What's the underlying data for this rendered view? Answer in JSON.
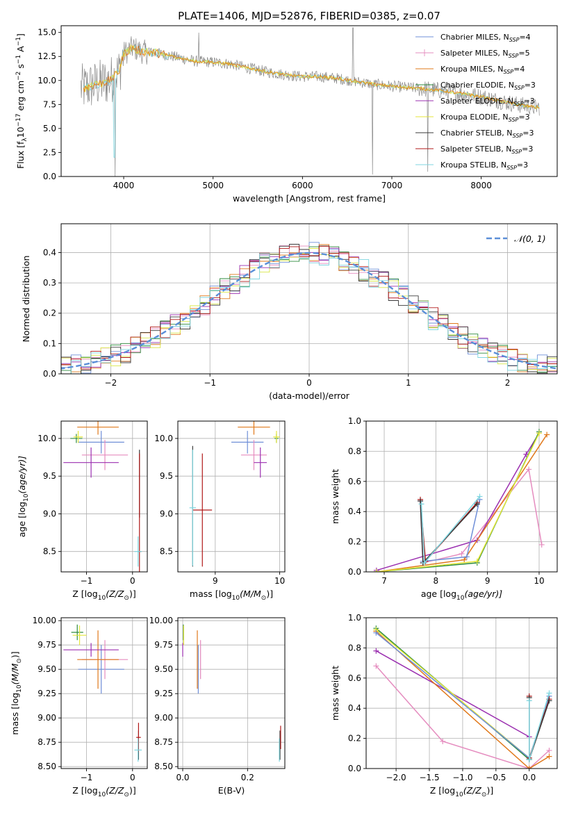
{
  "chart_data": [
    {
      "id": "spectrum",
      "type": "line",
      "title": "PLATE=1406, MJD=52876, FIBERID=0385, z=0.07",
      "xlabel": "wavelength [Angstrom, rest frame]",
      "ylabel_prefix": "Flux [f",
      "ylabel_sub": "λ",
      "ylabel_mid": "10",
      "ylabel_exp1": "−17",
      "ylabel_mid2": " erg cm",
      "ylabel_exp2": "−2",
      "ylabel_mid3": " s",
      "ylabel_exp3": "−1",
      "ylabel_mid4": " A",
      "ylabel_exp4": "−1",
      "ylabel_end": "]",
      "xlim": [
        3300,
        8850
      ],
      "ylim": [
        0,
        15.7
      ],
      "xticks": [
        4000,
        5000,
        6000,
        7000,
        8000
      ],
      "yticks": [
        "0.0",
        "2.5",
        "5.0",
        "7.5",
        "10.0",
        "12.5",
        "15.0"
      ],
      "ytick_values": [
        0,
        2.5,
        5,
        7.5,
        10,
        12.5,
        15
      ],
      "grid": false,
      "legend_position": "top-right",
      "legend": [
        {
          "name": "Chabrier MILES, N",
          "sub": "SSP",
          "tail": "=4",
          "color": "#6f8fd8",
          "marker": "line"
        },
        {
          "name": "Salpeter MILES, N",
          "sub": "SSP",
          "tail": "=5",
          "color": "#e58cbf",
          "marker": "plus"
        },
        {
          "name": "Kroupa MILES, N",
          "sub": "SSP",
          "tail": "=4",
          "color": "#e0781a",
          "marker": "line"
        },
        {
          "name": "Chabrier ELODIE, N",
          "sub": "SSP",
          "tail": "=3",
          "color": "#2e8b3e",
          "marker": "line"
        },
        {
          "name": "Salpeter ELODIE, N",
          "sub": "SSP",
          "tail": "=3",
          "color": "#9b2fb0",
          "marker": "line"
        },
        {
          "name": "Kroupa ELODIE, N",
          "sub": "SSP",
          "tail": "=3",
          "color": "#e4e63a",
          "marker": "line"
        },
        {
          "name": "Chabrier STELIB, N",
          "sub": "SSP",
          "tail": "=3",
          "color": "#3a3a3a",
          "marker": "line"
        },
        {
          "name": "Salpeter STELIB, N",
          "sub": "SSP",
          "tail": "=3",
          "color": "#b01818",
          "marker": "line"
        },
        {
          "name": "Kroupa STELIB, N",
          "sub": "SSP",
          "tail": "=3",
          "color": "#7fd6e0",
          "marker": "line"
        }
      ],
      "data_color": "#888888",
      "model_knots_x": [
        3550,
        3700,
        3850,
        3950,
        4000,
        4100,
        4200,
        4400,
        4600,
        4800,
        5000,
        5200,
        5400,
        5600,
        5800,
        6000,
        6200,
        6400,
        6600,
        6800,
        7000,
        7200,
        7400,
        7600,
        7800,
        8000,
        8200,
        8400,
        8600
      ],
      "model_knots_y": [
        9.2,
        9.6,
        10.0,
        11.0,
        12.8,
        13.4,
        13.0,
        12.8,
        12.4,
        12.0,
        11.9,
        11.7,
        11.3,
        10.9,
        10.6,
        10.4,
        10.4,
        10.2,
        9.9,
        9.6,
        9.4,
        9.25,
        9.1,
        8.9,
        8.6,
        8.3,
        7.9,
        7.5,
        7.2
      ],
      "model_colors": [
        "#7fd6e0",
        "#e4e63a",
        "#e0781a"
      ]
    },
    {
      "id": "residuals",
      "type": "line",
      "xlabel": "(data-model)/error",
      "ylabel": "Normed distribution",
      "xlim": [
        -2.5,
        2.5
      ],
      "ylim": [
        0,
        0.495
      ],
      "xticks": [
        -2,
        -1,
        0,
        1,
        2
      ],
      "xtick_labels": [
        "−2",
        "−1",
        "0",
        "1",
        "2"
      ],
      "yticks": [
        "0.0",
        "0.1",
        "0.2",
        "0.3",
        "0.4"
      ],
      "ytick_values": [
        0,
        0.1,
        0.2,
        0.3,
        0.4
      ],
      "grid": true,
      "legend_position": "top-right",
      "legend_label": "𝒩(0, 1)",
      "gauss_color": "#5b8fd8",
      "hist_colors": [
        "#6f8fd8",
        "#e58cbf",
        "#e0781a",
        "#2e8b3e",
        "#9b2fb0",
        "#d9e84a",
        "#3a3a3a",
        "#b01818",
        "#7fd6e0"
      ]
    },
    {
      "id": "age_vs_Z",
      "type": "scatter",
      "xlabel": "Z [log",
      "xlabel_sub": "10",
      "xlabel_tail": "(Z/Z",
      "xlabel_sun": "⊙",
      "xlabel_end": ")]",
      "ylabel": "age  [log",
      "ylabel_sub": "10",
      "ylabel_tail": "(age/yr)]",
      "xlim": [
        -1.55,
        0.32
      ],
      "ylim": [
        8.23,
        10.23
      ],
      "xticks": [
        -1,
        0
      ],
      "xtick_labels": [
        "−1",
        "0"
      ],
      "yticks": [
        "8.5",
        "9.0",
        "9.5",
        "10.0"
      ],
      "ytick_values": [
        8.5,
        9.0,
        9.5,
        10.0
      ],
      "grid": true,
      "points": [
        {
          "x": -0.68,
          "xerr": 0.5,
          "y": 9.95,
          "yerr": 0.15,
          "color": "#6f8fd8"
        },
        {
          "x": -0.6,
          "xerr": 0.5,
          "y": 9.78,
          "yerr": 0.2,
          "color": "#e58cbf"
        },
        {
          "x": -0.75,
          "xerr": 0.45,
          "y": 10.15,
          "yerr": 0.1,
          "color": "#e0781a"
        },
        {
          "x": -1.22,
          "xerr": 0.13,
          "y": 10.0,
          "yerr": 0.06,
          "color": "#2e8b3e"
        },
        {
          "x": -0.9,
          "xerr": 0.6,
          "y": 9.68,
          "yerr": 0.2,
          "color": "#9b2fb0"
        },
        {
          "x": -1.18,
          "xerr": 0.1,
          "y": 10.02,
          "yerr": 0.08,
          "color": "#e4e63a"
        },
        {
          "x": 0.15,
          "xerr": 0.0,
          "y": 9.4,
          "yerr": 0.45,
          "color": "#3a3a3a"
        },
        {
          "x": 0.15,
          "xerr": 0.04,
          "y": 8.5,
          "yerr": 1.3,
          "color": "#b01818"
        },
        {
          "x": 0.12,
          "xerr": 0.08,
          "y": 8.5,
          "yerr": 0.2,
          "color": "#7fd6e0"
        }
      ]
    },
    {
      "id": "age_vs_mass",
      "type": "scatter",
      "xlabel": "mass [log",
      "xlabel_sub": "10",
      "xlabel_tail": "(M/M",
      "xlabel_sun": "⊙",
      "xlabel_end": ")]",
      "xlim": [
        8.42,
        10.08
      ],
      "ylim": [
        8.23,
        10.23
      ],
      "xticks": [
        9,
        10
      ],
      "xtick_labels": [
        "9",
        "10"
      ],
      "yticks": [
        "8.5",
        "9.0",
        "9.5",
        "10.0"
      ],
      "ytick_values": [
        8.5,
        9.0,
        9.5,
        10.0
      ],
      "grid": true,
      "points": [
        {
          "x": 9.5,
          "xerr": 0.25,
          "y": 9.95,
          "yerr": 0.15,
          "color": "#6f8fd8"
        },
        {
          "x": 9.6,
          "xerr": 0.2,
          "y": 9.78,
          "yerr": 0.2,
          "color": "#e58cbf"
        },
        {
          "x": 9.6,
          "xerr": 0.25,
          "y": 10.15,
          "yerr": 0.1,
          "color": "#e0781a"
        },
        {
          "x": 9.95,
          "xerr": 0.03,
          "y": 10.0,
          "yerr": 0.06,
          "color": "#2e8b3e"
        },
        {
          "x": 9.7,
          "xerr": 0.1,
          "y": 9.68,
          "yerr": 0.2,
          "color": "#9b2fb0"
        },
        {
          "x": 9.95,
          "xerr": 0.05,
          "y": 10.02,
          "yerr": 0.08,
          "color": "#e4e63a"
        },
        {
          "x": 8.65,
          "xerr": 0.0,
          "y": 9.1,
          "yerr": 0.8,
          "color": "#3a3a3a"
        },
        {
          "x": 8.8,
          "xerr": 0.15,
          "y": 9.05,
          "yerr": 0.75,
          "color": "#b01818"
        },
        {
          "x": 8.65,
          "xerr": 0.05,
          "y": 9.08,
          "yerr": 0.77,
          "color": "#7fd6e0"
        }
      ]
    },
    {
      "id": "weight_vs_age",
      "type": "line",
      "xlabel": "age  [log",
      "xlabel_sub": "10",
      "xlabel_tail": "(age/yr)]",
      "ylabel": "mass weight",
      "xlim": [
        6.65,
        10.35
      ],
      "ylim": [
        0,
        1.0
      ],
      "xticks": [
        7,
        8,
        9,
        10
      ],
      "xtick_labels": [
        "7",
        "8",
        "9",
        "10"
      ],
      "yticks": [
        "0.0",
        "0.2",
        "0.4",
        "0.6",
        "0.8",
        "1.0"
      ],
      "ytick_values": [
        0,
        0.2,
        0.4,
        0.6,
        0.8,
        1.0
      ],
      "grid": true,
      "series": [
        {
          "color": "#e58cbf",
          "x": [
            7.7,
            7.75,
            8.5,
            9.8,
            10.05
          ],
          "y": [
            0.47,
            0.06,
            0.12,
            0.68,
            0.18
          ]
        },
        {
          "color": "#9b2fb0",
          "x": [
            6.85,
            8.8,
            9.75,
            10.0
          ],
          "y": [
            0.01,
            0.21,
            0.78,
            0.92
          ]
        },
        {
          "color": "#e0781a",
          "x": [
            6.85,
            8.55,
            10.15
          ],
          "y": [
            0.0,
            0.08,
            0.91
          ]
        },
        {
          "color": "#2e8b3e",
          "x": [
            6.85,
            8.8,
            10.0
          ],
          "y": [
            0.0,
            0.06,
            0.93
          ]
        },
        {
          "color": "#e4e63a",
          "x": [
            6.85,
            8.8,
            10.0
          ],
          "y": [
            0.0,
            0.07,
            0.92
          ]
        },
        {
          "color": "#6f8fd8",
          "x": [
            7.75,
            8.6,
            8.85
          ],
          "y": [
            0.07,
            0.1,
            0.48
          ]
        },
        {
          "color": "#b01818",
          "x": [
            7.7,
            7.8,
            8.8
          ],
          "y": [
            0.48,
            0.07,
            0.46
          ]
        },
        {
          "color": "#3a3a3a",
          "x": [
            7.7,
            7.75,
            8.8
          ],
          "y": [
            0.47,
            0.06,
            0.45
          ]
        },
        {
          "color": "#7fd6e0",
          "x": [
            7.72,
            7.78,
            8.85
          ],
          "y": [
            0.45,
            0.06,
            0.5
          ]
        }
      ]
    },
    {
      "id": "mass_vs_Z",
      "type": "scatter",
      "xlabel": "Z [log",
      "xlabel_sub": "10",
      "xlabel_tail": "(Z/Z",
      "xlabel_sun": "⊙",
      "xlabel_end": ")]",
      "ylabel": "mass [log",
      "ylabel_sub": "10",
      "ylabel_tail": "(M/M",
      "ylabel_sun": "⊙",
      "ylabel_end": ")]",
      "xlim": [
        -1.55,
        0.32
      ],
      "ylim": [
        8.48,
        10.03
      ],
      "xticks": [
        -1,
        0
      ],
      "xtick_labels": [
        "−1",
        "0"
      ],
      "yticks": [
        "8.50",
        "8.75",
        "9.00",
        "9.25",
        "9.50",
        "9.75",
        "10.00"
      ],
      "ytick_values": [
        8.5,
        8.75,
        9.0,
        9.25,
        9.5,
        9.75,
        10.0
      ],
      "grid": true,
      "points": [
        {
          "x": -0.68,
          "xerr": 0.5,
          "y": 9.5,
          "yerr": 0.25,
          "color": "#6f8fd8"
        },
        {
          "x": -0.6,
          "xerr": 0.5,
          "y": 9.6,
          "yerr": 0.2,
          "color": "#e58cbf"
        },
        {
          "x": -0.75,
          "xerr": 0.45,
          "y": 9.6,
          "yerr": 0.3,
          "color": "#e0781a"
        },
        {
          "x": -1.2,
          "xerr": 0.13,
          "y": 9.88,
          "yerr": 0.08,
          "color": "#2e8b3e"
        },
        {
          "x": -0.9,
          "xerr": 0.6,
          "y": 9.7,
          "yerr": 0.07,
          "color": "#9b2fb0"
        },
        {
          "x": -1.15,
          "xerr": 0.15,
          "y": 9.85,
          "yerr": 0.1,
          "color": "#e4e63a"
        },
        {
          "x": 0.13,
          "xerr": 0.0,
          "y": 8.72,
          "yerr": 0.15,
          "color": "#3a3a3a"
        },
        {
          "x": 0.13,
          "xerr": 0.05,
          "y": 8.8,
          "yerr": 0.15,
          "color": "#b01818"
        },
        {
          "x": 0.12,
          "xerr": 0.08,
          "y": 8.67,
          "yerr": 0.12,
          "color": "#7fd6e0"
        }
      ]
    },
    {
      "id": "mass_vs_ebv",
      "type": "scatter",
      "xlabel": "E(B-V)",
      "xlim": [
        -0.015,
        0.315
      ],
      "ylim": [
        8.48,
        10.03
      ],
      "xticks": [
        0,
        0.2
      ],
      "xtick_labels": [
        "0.0",
        "0.2"
      ],
      "yticks": [
        "8.50",
        "8.75",
        "9.00",
        "9.25",
        "9.50",
        "9.75",
        "10.00"
      ],
      "ytick_values": [
        8.5,
        8.75,
        9.0,
        9.25,
        9.5,
        9.75,
        10.0
      ],
      "grid": true,
      "points": [
        {
          "x": 0.048,
          "xerr": 0.0,
          "y": 9.5,
          "yerr": 0.25,
          "color": "#6f8fd8"
        },
        {
          "x": 0.055,
          "xerr": 0.0,
          "y": 9.6,
          "yerr": 0.2,
          "color": "#e58cbf"
        },
        {
          "x": 0.045,
          "xerr": 0.0,
          "y": 9.6,
          "yerr": 0.3,
          "color": "#e0781a"
        },
        {
          "x": 0.002,
          "xerr": 0.0,
          "y": 9.88,
          "yerr": 0.08,
          "color": "#2e8b3e"
        },
        {
          "x": 0.0,
          "xerr": 0.0,
          "y": 9.7,
          "yerr": 0.07,
          "color": "#9b2fb0"
        },
        {
          "x": 0.003,
          "xerr": 0.0,
          "y": 9.85,
          "yerr": 0.1,
          "color": "#e4e63a"
        },
        {
          "x": 0.3,
          "xerr": 0.0,
          "y": 8.72,
          "yerr": 0.15,
          "color": "#3a3a3a"
        },
        {
          "x": 0.302,
          "xerr": 0.0,
          "y": 8.8,
          "yerr": 0.12,
          "color": "#b01818"
        },
        {
          "x": 0.298,
          "xerr": 0.0,
          "y": 8.67,
          "yerr": 0.12,
          "color": "#7fd6e0"
        }
      ]
    },
    {
      "id": "weight_vs_Z",
      "type": "line",
      "xlabel": "Z [log",
      "xlabel_sub": "10",
      "xlabel_tail": "(Z/Z",
      "xlabel_sun": "⊙",
      "xlabel_end": ")]",
      "ylabel": "mass weight",
      "xlim": [
        -2.45,
        0.42
      ],
      "ylim": [
        0,
        1.0
      ],
      "xticks": [
        -2.0,
        -1.5,
        -1.0,
        -0.5,
        0.0
      ],
      "xtick_labels": [
        "−2.0",
        "−1.5",
        "−1.0",
        "−0.5",
        "0.0"
      ],
      "yticks": [
        "0.0",
        "0.2",
        "0.4",
        "0.6",
        "0.8",
        "1.0"
      ],
      "ytick_values": [
        0,
        0.2,
        0.4,
        0.6,
        0.8,
        1.0
      ],
      "grid": true,
      "series": [
        {
          "color": "#e58cbf",
          "x": [
            -2.3,
            -1.3,
            0.0,
            0.3
          ],
          "y": [
            0.68,
            0.18,
            0.0,
            0.12
          ]
        },
        {
          "color": "#9b2fb0",
          "x": [
            -2.3,
            0.0
          ],
          "y": [
            0.78,
            0.21
          ]
        },
        {
          "color": "#e0781a",
          "x": [
            -2.3,
            0.0,
            0.3
          ],
          "y": [
            0.91,
            0.0,
            0.08
          ]
        },
        {
          "color": "#2e8b3e",
          "x": [
            -2.3,
            0.0
          ],
          "y": [
            0.93,
            0.06
          ]
        },
        {
          "color": "#e4e63a",
          "x": [
            -2.3,
            0.0
          ],
          "y": [
            0.92,
            0.07
          ]
        },
        {
          "color": "#6f8fd8",
          "x": [
            -2.3,
            0.0,
            0.3
          ],
          "y": [
            0.9,
            0.07,
            0.48
          ]
        },
        {
          "color": "#b01818",
          "x": [
            0.0,
            0.0,
            0.3
          ],
          "y": [
            0.48,
            0.07,
            0.46
          ]
        },
        {
          "color": "#3a3a3a",
          "x": [
            0.0,
            0.0,
            0.3
          ],
          "y": [
            0.47,
            0.06,
            0.45
          ]
        },
        {
          "color": "#7fd6e0",
          "x": [
            0.0,
            0.0,
            0.3
          ],
          "y": [
            0.45,
            0.06,
            0.5
          ]
        }
      ]
    }
  ]
}
